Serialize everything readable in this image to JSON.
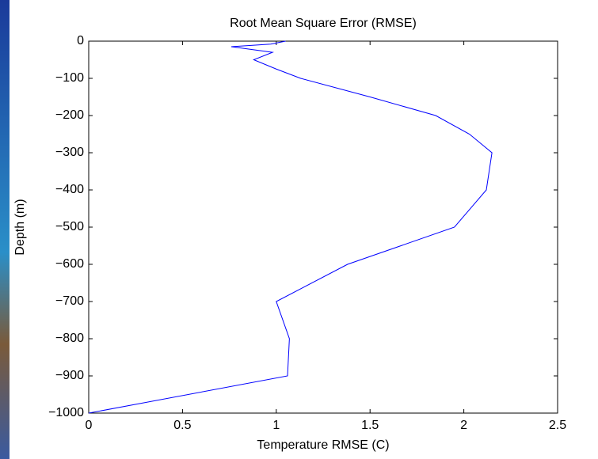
{
  "chart_data": {
    "type": "line",
    "title": "Root Mean Square Error (RMSE)",
    "x_label": "Temperature RMSE (C)",
    "y_label": "Depth (m)",
    "color": "#0000ff",
    "x": [
      1.05,
      0.97,
      0.76,
      0.98,
      0.88,
      1.0,
      1.13,
      1.5,
      1.85,
      2.03,
      2.15,
      2.12,
      1.95,
      1.38,
      1.0,
      1.07,
      1.06,
      0
    ],
    "values": [
      0,
      -8,
      -15,
      -30,
      -50,
      -75,
      -100,
      -150,
      -200,
      -250,
      -300,
      -400,
      -500,
      -600,
      -700,
      -800,
      -900,
      -1000
    ],
    "xlim": [
      0,
      2.5
    ],
    "xticks": [
      0,
      0.5,
      1,
      1.5,
      2,
      2.5
    ],
    "ylim": [
      -1000,
      0
    ],
    "yticks": [
      {
        "value": -1000,
        "label": "−1000"
      },
      {
        "value": -900,
        "label": "−900"
      },
      {
        "value": -800,
        "label": "−800"
      },
      {
        "value": -700,
        "label": "−700"
      },
      {
        "value": -600,
        "label": "−600"
      },
      {
        "value": -500,
        "label": "−500"
      },
      {
        "value": -400,
        "label": "−400"
      },
      {
        "value": -300,
        "label": "−300"
      },
      {
        "value": -200,
        "label": "−200"
      },
      {
        "value": -100,
        "label": "−100"
      },
      0
    ]
  }
}
